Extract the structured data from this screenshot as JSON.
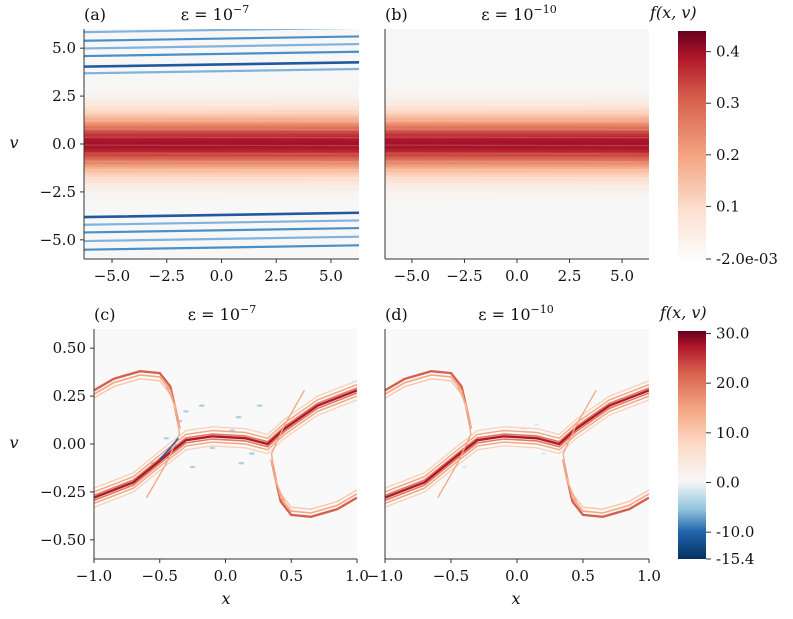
{
  "chart_data": [
    {
      "type": "heatmap",
      "panel": "(a)",
      "title": "ε = 10^−7",
      "title_base": "ε = 10",
      "title_exp": "−7",
      "xlabel": "",
      "ylabel": "v",
      "xlim": [
        -6.28,
        6.28
      ],
      "ylim": [
        -6,
        6
      ],
      "xticks": [
        "−5.0",
        "−2.5",
        "0.0",
        "2.5",
        "5.0"
      ],
      "xtick_values": [
        -5,
        -2.5,
        0,
        2.5,
        5
      ],
      "yticks": [
        "5.0",
        "2.5",
        "0.0",
        "−2.5",
        "−5.0"
      ],
      "ytick_values": [
        5,
        2.5,
        0,
        -2.5,
        -5
      ],
      "features": {
        "maxwellian_peak": 0.44,
        "maxwellian_width": 1.0,
        "negative_streaks_v": [
          4.15,
          3.8,
          4.7,
          5.1,
          5.5,
          5.95,
          -3.7,
          -4.1,
          -4.5,
          -4.95,
          -5.4
        ],
        "streak_slope": 0.018
      }
    },
    {
      "type": "heatmap",
      "panel": "(b)",
      "title": "ε = 10^−10",
      "title_base": "ε = 10",
      "title_exp": "−10",
      "xlabel": "",
      "ylabel": "",
      "xlim": [
        -6.28,
        6.28
      ],
      "ylim": [
        -6,
        6
      ],
      "xticks": [
        "−5.0",
        "−2.5",
        "0.0",
        "2.5",
        "5.0"
      ],
      "xtick_values": [
        -5,
        -2.5,
        0,
        2.5,
        5
      ],
      "yticks": [],
      "ytick_values": [],
      "features": {
        "maxwellian_peak": 0.44,
        "maxwellian_width": 1.0,
        "negative_streaks_v": [],
        "streak_slope": 0
      }
    },
    {
      "type": "heatmap",
      "panel": "(c)",
      "title": "ε = 10^−7",
      "title_base": "ε = 10",
      "title_exp": "−7",
      "xlabel": "x",
      "ylabel": "v",
      "xlim": [
        -1.0,
        1.0
      ],
      "ylim": [
        -0.6,
        0.6
      ],
      "xticks": [
        "−1.0",
        "−0.5",
        "0.0",
        "0.5",
        "1.0"
      ],
      "xtick_values": [
        -1,
        -0.5,
        0,
        0.5,
        1
      ],
      "yticks": [
        "0.50",
        "0.25",
        "0.00",
        "−0.25",
        "−0.50"
      ],
      "ytick_values": [
        0.5,
        0.25,
        0,
        -0.25,
        -0.5
      ],
      "features": {
        "filament_peak": 30.0,
        "noise_negative": true
      }
    },
    {
      "type": "heatmap",
      "panel": "(d)",
      "title": "ε = 10^−10",
      "title_base": "ε = 10",
      "title_exp": "−10",
      "xlabel": "x",
      "ylabel": "",
      "xlim": [
        -1.0,
        1.0
      ],
      "ylim": [
        -0.6,
        0.6
      ],
      "xticks": [
        "−1.0",
        "−0.5",
        "0.0",
        "0.5",
        "1.0"
      ],
      "xtick_values": [
        -1,
        -0.5,
        0,
        0.5,
        1
      ],
      "yticks": [],
      "ytick_values": [],
      "features": {
        "filament_peak": 30.0,
        "noise_negative": false
      }
    }
  ],
  "colorbars": [
    {
      "label": "f(x, v)",
      "min": -0.002,
      "max": 0.44,
      "ticks": [
        "0.4",
        "0.3",
        "0.2",
        "0.1",
        "-2.0e-03"
      ],
      "tick_values": [
        0.4,
        0.3,
        0.2,
        0.1,
        -0.002
      ]
    },
    {
      "label": "f(x, v)",
      "min": -15.4,
      "max": 30.5,
      "ticks": [
        "30.0",
        "20.0",
        "10.0",
        "0.0",
        "-10.0",
        "-15.4"
      ],
      "tick_values": [
        30,
        20,
        10,
        0,
        -10,
        -15.4
      ]
    }
  ],
  "colors": {
    "dark_red": "#67001f",
    "red": "#b2182b",
    "salmon": "#f4a582",
    "light": "#fddbc7",
    "white": "#f7f7f7",
    "light_blue": "#d1e5f0",
    "blue": "#4393c3",
    "dark_blue": "#053061"
  }
}
